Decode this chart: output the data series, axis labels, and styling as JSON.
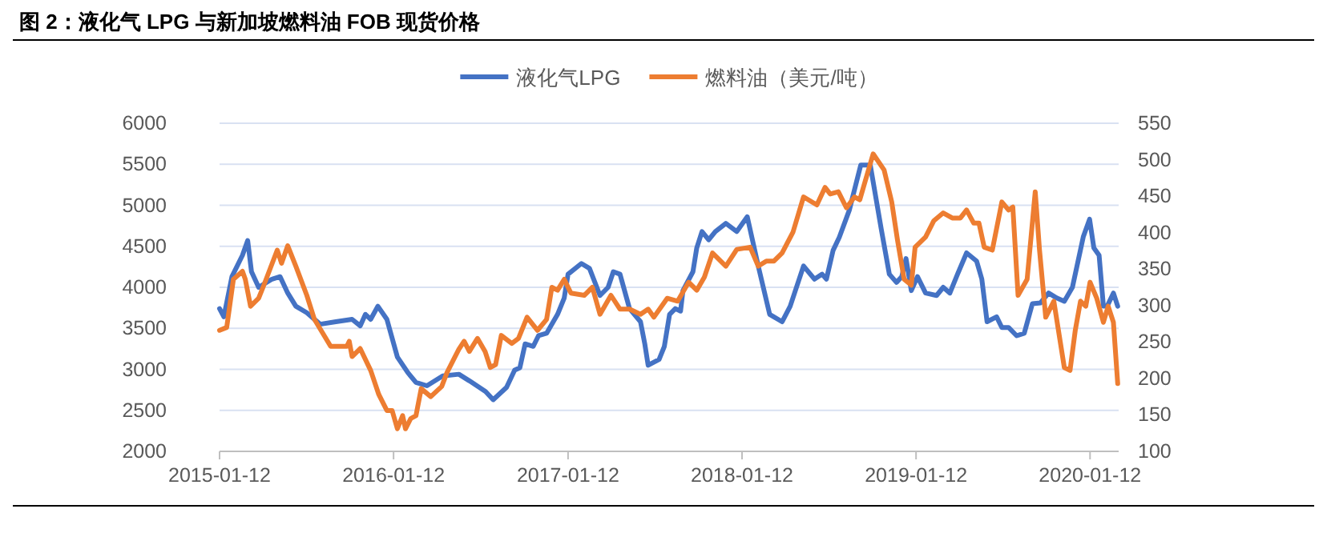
{
  "chart_data": {
    "type": "line",
    "title": "图 2：液化气 LPG 与新加坡燃料油 FOB 现货价格",
    "xlim": [
      "2015-01-12",
      "2020-03-12"
    ],
    "xticks": [
      "2015-01-12",
      "2016-01-12",
      "2017-01-12",
      "2018-01-12",
      "2019-01-12",
      "2020-01-12"
    ],
    "ylim": [
      2000,
      6000
    ],
    "yticks": [
      2000,
      2500,
      3000,
      3500,
      4000,
      4500,
      5000,
      5500,
      6000
    ],
    "y2lim": [
      100,
      550
    ],
    "y2ticks": [
      100,
      150,
      200,
      250,
      300,
      350,
      400,
      450,
      500,
      550
    ],
    "grid": "y",
    "legend": "top",
    "series": [
      {
        "name": "液化气LPG",
        "color": "#4472c4",
        "x": [
          "2015-01-12",
          "2015-01-21",
          "2015-02-07",
          "2015-03-01",
          "2015-03-12",
          "2015-03-20",
          "2015-04-04",
          "2015-05-02",
          "2015-05-19",
          "2015-06-04",
          "2015-06-21",
          "2015-07-14",
          "2015-08-11",
          "2015-09-13",
          "2015-10-17",
          "2015-11-03",
          "2015-11-14",
          "2015-11-25",
          "2015-12-10",
          "2015-12-29",
          "2016-01-20",
          "2016-02-11",
          "2016-02-28",
          "2016-03-22",
          "2016-04-24",
          "2016-05-28",
          "2016-06-19",
          "2016-07-23",
          "2016-08-08",
          "2016-09-05",
          "2016-09-22",
          "2016-10-03",
          "2016-10-14",
          "2016-10-31",
          "2016-11-11",
          "2016-11-28",
          "2016-12-21",
          "2017-01-04",
          "2017-01-12",
          "2017-02-09",
          "2017-02-26",
          "2017-03-20",
          "2017-04-06",
          "2017-04-17",
          "2017-05-01",
          "2017-05-21",
          "2017-06-13",
          "2017-06-22",
          "2017-06-29",
          "2017-07-22",
          "2017-08-02",
          "2017-08-13",
          "2017-08-25",
          "2017-09-05",
          "2017-09-10",
          "2017-10-01",
          "2017-10-09",
          "2017-10-20",
          "2017-11-03",
          "2017-11-17",
          "2017-12-09",
          "2018-01-01",
          "2018-01-23",
          "2018-02-15",
          "2018-03-11",
          "2018-04-06",
          "2018-04-23",
          "2018-05-21",
          "2018-06-13",
          "2018-06-29",
          "2018-07-08",
          "2018-07-22",
          "2018-08-04",
          "2018-08-25",
          "2018-09-18",
          "2018-10-08",
          "2018-10-31",
          "2018-11-17",
          "2018-12-02",
          "2018-12-13",
          "2018-12-22",
          "2019-01-02",
          "2019-01-15",
          "2019-02-01",
          "2019-02-24",
          "2019-03-10",
          "2019-03-24",
          "2019-04-09",
          "2019-04-28",
          "2019-05-19",
          "2019-05-30",
          "2019-06-10",
          "2019-06-30",
          "2019-07-11",
          "2019-07-25",
          "2019-08-11",
          "2019-08-27",
          "2019-09-13",
          "2019-09-30",
          "2019-10-17",
          "2019-11-03",
          "2019-11-19",
          "2019-12-06",
          "2019-12-29",
          "2020-01-11",
          "2020-01-20",
          "2020-01-31",
          "2020-02-09",
          "2020-02-17",
          "2020-03-01",
          "2020-03-10"
        ],
        "values": [
          3740,
          3640,
          4130,
          4390,
          4570,
          4190,
          4000,
          4100,
          4130,
          3930,
          3770,
          3690,
          3550,
          3580,
          3610,
          3530,
          3670,
          3610,
          3770,
          3610,
          3150,
          2960,
          2840,
          2800,
          2920,
          2940,
          2860,
          2730,
          2630,
          2780,
          2990,
          3020,
          3310,
          3280,
          3410,
          3440,
          3670,
          3870,
          4160,
          4290,
          4230,
          3900,
          4000,
          4190,
          4160,
          3740,
          3580,
          3310,
          3050,
          3120,
          3280,
          3670,
          3740,
          3710,
          3960,
          4190,
          4480,
          4680,
          4580,
          4680,
          4780,
          4680,
          4860,
          4260,
          3670,
          3580,
          3770,
          4260,
          4100,
          4160,
          4100,
          4450,
          4610,
          4940,
          5490,
          5490,
          4710,
          4160,
          4060,
          4130,
          4350,
          3960,
          4130,
          3930,
          3900,
          4000,
          3930,
          4160,
          4420,
          4320,
          4100,
          3580,
          3640,
          3510,
          3510,
          3410,
          3440,
          3800,
          3810,
          3930,
          3870,
          3830,
          4000,
          4620,
          4830,
          4480,
          4390,
          3770,
          3770,
          3930,
          3770
        ]
      },
      {
        "name": "燃料油（美元/吨）",
        "color": "#ed7d31",
        "axis": "y2",
        "x": [
          "2015-01-12",
          "2015-01-27",
          "2015-02-10",
          "2015-03-01",
          "2015-03-07",
          "2015-03-18",
          "2015-04-04",
          "2015-04-15",
          "2015-05-13",
          "2015-05-22",
          "2015-06-04",
          "2015-06-21",
          "2015-07-14",
          "2015-07-30",
          "2015-09-02",
          "2015-10-06",
          "2015-10-11",
          "2015-10-17",
          "2015-11-03",
          "2015-11-25",
          "2015-12-12",
          "2015-12-29",
          "2016-01-09",
          "2016-01-20",
          "2016-01-31",
          "2016-02-06",
          "2016-02-17",
          "2016-02-28",
          "2016-03-10",
          "2016-03-30",
          "2016-04-22",
          "2016-05-03",
          "2016-05-17",
          "2016-05-28",
          "2016-06-08",
          "2016-06-19",
          "2016-07-06",
          "2016-07-22",
          "2016-08-02",
          "2016-08-13",
          "2016-08-25",
          "2016-09-16",
          "2016-09-30",
          "2016-10-18",
          "2016-11-09",
          "2016-11-28",
          "2016-12-09",
          "2016-12-21",
          "2017-01-04",
          "2017-01-18",
          "2017-02-15",
          "2017-03-04",
          "2017-03-20",
          "2017-04-12",
          "2017-05-01",
          "2017-05-21",
          "2017-06-13",
          "2017-06-29",
          "2017-07-11",
          "2017-08-08",
          "2017-08-30",
          "2017-09-22",
          "2017-10-09",
          "2017-10-25",
          "2017-11-11",
          "2017-12-09",
          "2018-01-01",
          "2018-01-29",
          "2018-02-15",
          "2018-03-04",
          "2018-03-20",
          "2018-04-06",
          "2018-04-29",
          "2018-05-21",
          "2018-06-18",
          "2018-07-05",
          "2018-07-16",
          "2018-08-02",
          "2018-08-19",
          "2018-09-05",
          "2018-09-16",
          "2018-10-14",
          "2018-11-06",
          "2018-11-22",
          "2018-12-04",
          "2018-12-18",
          "2019-01-02",
          "2019-01-10",
          "2019-02-01",
          "2019-02-18",
          "2019-03-10",
          "2019-03-29",
          "2019-04-15",
          "2019-04-28",
          "2019-05-13",
          "2019-05-24",
          "2019-06-04",
          "2019-06-21",
          "2019-07-11",
          "2019-07-25",
          "2019-08-03",
          "2019-08-14",
          "2019-09-02",
          "2019-09-19",
          "2019-09-28",
          "2019-10-11",
          "2019-10-28",
          "2019-11-19",
          "2019-12-01",
          "2019-12-12",
          "2019-12-23",
          "2020-01-03",
          "2020-01-12",
          "2020-01-26",
          "2020-02-09",
          "2020-02-19",
          "2020-03-01",
          "2020-03-10"
        ],
        "values": [
          266,
          270,
          336,
          347,
          336,
          299,
          310,
          328,
          376,
          358,
          382,
          354,
          314,
          281,
          244,
          244,
          251,
          230,
          241,
          211,
          178,
          156,
          156,
          131,
          149,
          131,
          145,
          149,
          186,
          175,
          189,
          208,
          226,
          240,
          251,
          237,
          255,
          237,
          215,
          219,
          259,
          248,
          255,
          284,
          266,
          281,
          325,
          321,
          336,
          317,
          314,
          325,
          288,
          314,
          295,
          295,
          288,
          295,
          284,
          310,
          306,
          332,
          321,
          339,
          372,
          354,
          377,
          380,
          354,
          361,
          361,
          372,
          401,
          449,
          438,
          462,
          453,
          456,
          434,
          449,
          445,
          508,
          486,
          442,
          390,
          336,
          328,
          380,
          394,
          416,
          427,
          420,
          420,
          431,
          413,
          413,
          380,
          376,
          442,
          431,
          435,
          314,
          336,
          456,
          376,
          284,
          306,
          215,
          211,
          266,
          306,
          299,
          332,
          310,
          277,
          299,
          277,
          193
        ]
      }
    ]
  }
}
